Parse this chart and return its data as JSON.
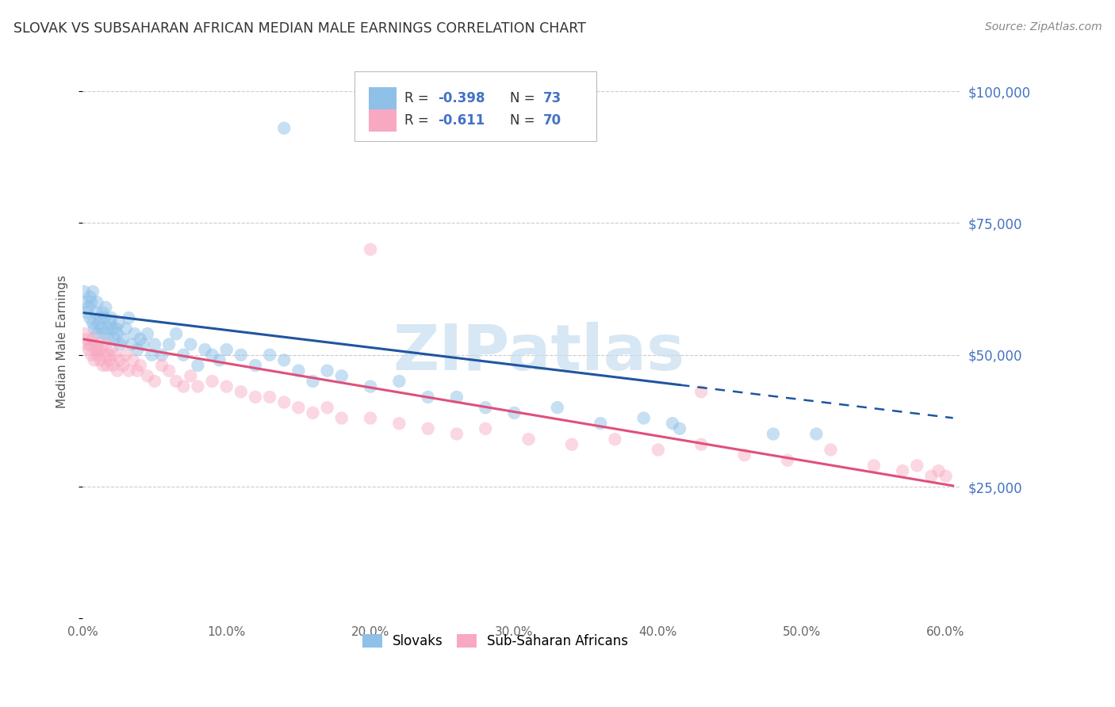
{
  "title": "SLOVAK VS SUBSAHARAN AFRICAN MEDIAN MALE EARNINGS CORRELATION CHART",
  "source": "Source: ZipAtlas.com",
  "ylabel": "Median Male Earnings",
  "xlabel_ticks": [
    "0.0%",
    "10.0%",
    "20.0%",
    "30.0%",
    "40.0%",
    "50.0%",
    "60.0%"
  ],
  "xlim": [
    0.0,
    0.61
  ],
  "ylim": [
    0,
    105000
  ],
  "yticks": [
    0,
    25000,
    50000,
    75000,
    100000
  ],
  "ytick_labels": [
    "",
    "$25,000",
    "$50,000",
    "$75,000",
    "$100,000"
  ],
  "blue_label": "Slovaks",
  "pink_label": "Sub-Saharan Africans",
  "blue_R_val": "-0.398",
  "blue_N_val": "73",
  "pink_R_val": "-0.611",
  "pink_N_val": "70",
  "blue_color": "#8ec0e8",
  "pink_color": "#f8a8c0",
  "blue_line_color": "#2055a0",
  "pink_line_color": "#e0507a",
  "background_color": "#ffffff",
  "grid_color": "#cccccc",
  "title_color": "#333333",
  "right_label_color": "#4472c4",
  "watermark_color": "#c8ddf0",
  "blue_line_start_x": 0.001,
  "blue_line_solid_end_x": 0.415,
  "blue_line_dash_end_x": 0.605,
  "pink_line_start_x": 0.001,
  "pink_line_end_x": 0.605,
  "slovaks_x": [
    0.001,
    0.002,
    0.003,
    0.004,
    0.005,
    0.005,
    0.006,
    0.007,
    0.007,
    0.008,
    0.009,
    0.01,
    0.01,
    0.011,
    0.012,
    0.013,
    0.014,
    0.015,
    0.015,
    0.016,
    0.017,
    0.018,
    0.019,
    0.02,
    0.021,
    0.022,
    0.023,
    0.024,
    0.025,
    0.026,
    0.028,
    0.03,
    0.032,
    0.034,
    0.036,
    0.038,
    0.04,
    0.042,
    0.045,
    0.048,
    0.05,
    0.055,
    0.06,
    0.065,
    0.07,
    0.075,
    0.08,
    0.085,
    0.09,
    0.095,
    0.1,
    0.11,
    0.12,
    0.13,
    0.14,
    0.15,
    0.16,
    0.17,
    0.18,
    0.2,
    0.22,
    0.24,
    0.26,
    0.28,
    0.3,
    0.33,
    0.36,
    0.39,
    0.41,
    0.415,
    0.48,
    0.51,
    0.14
  ],
  "slovaks_y": [
    62000,
    60000,
    58000,
    59000,
    61000,
    57000,
    60000,
    56000,
    62000,
    55000,
    58000,
    54000,
    60000,
    56000,
    57000,
    55000,
    58000,
    54000,
    57000,
    59000,
    55000,
    53000,
    56000,
    57000,
    55000,
    53000,
    55000,
    54000,
    56000,
    52000,
    53000,
    55000,
    57000,
    52000,
    54000,
    51000,
    53000,
    52000,
    54000,
    50000,
    52000,
    50000,
    52000,
    54000,
    50000,
    52000,
    48000,
    51000,
    50000,
    49000,
    51000,
    50000,
    48000,
    50000,
    49000,
    47000,
    45000,
    47000,
    46000,
    44000,
    45000,
    42000,
    42000,
    40000,
    39000,
    40000,
    37000,
    38000,
    37000,
    36000,
    35000,
    35000,
    93000
  ],
  "african_x": [
    0.001,
    0.002,
    0.003,
    0.004,
    0.005,
    0.006,
    0.007,
    0.008,
    0.009,
    0.01,
    0.01,
    0.011,
    0.012,
    0.013,
    0.014,
    0.015,
    0.016,
    0.017,
    0.018,
    0.019,
    0.02,
    0.021,
    0.022,
    0.024,
    0.026,
    0.028,
    0.03,
    0.032,
    0.035,
    0.038,
    0.04,
    0.045,
    0.05,
    0.055,
    0.06,
    0.065,
    0.07,
    0.075,
    0.08,
    0.09,
    0.1,
    0.11,
    0.12,
    0.13,
    0.14,
    0.15,
    0.16,
    0.17,
    0.18,
    0.2,
    0.22,
    0.24,
    0.26,
    0.28,
    0.31,
    0.34,
    0.37,
    0.4,
    0.43,
    0.46,
    0.49,
    0.52,
    0.55,
    0.57,
    0.58,
    0.59,
    0.595,
    0.6,
    0.43,
    0.2
  ],
  "african_y": [
    54000,
    52000,
    53000,
    51000,
    52000,
    50000,
    53000,
    49000,
    51000,
    52000,
    50000,
    51000,
    49000,
    51000,
    48000,
    50000,
    52000,
    48000,
    50000,
    49000,
    51000,
    48000,
    50000,
    47000,
    49000,
    48000,
    50000,
    47000,
    49000,
    47000,
    48000,
    46000,
    45000,
    48000,
    47000,
    45000,
    44000,
    46000,
    44000,
    45000,
    44000,
    43000,
    42000,
    42000,
    41000,
    40000,
    39000,
    40000,
    38000,
    38000,
    37000,
    36000,
    35000,
    36000,
    34000,
    33000,
    34000,
    32000,
    33000,
    31000,
    30000,
    32000,
    29000,
    28000,
    29000,
    27000,
    28000,
    27000,
    43000,
    70000
  ]
}
